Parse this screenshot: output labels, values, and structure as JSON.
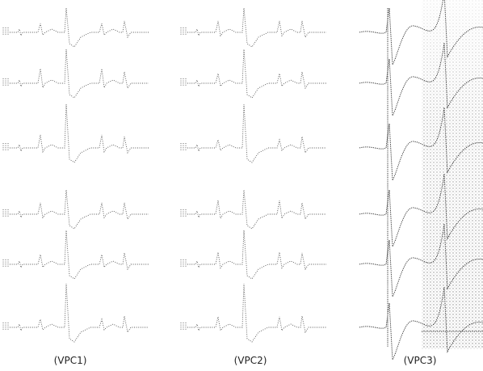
{
  "panels": [
    {
      "label": "(VPC1)"
    },
    {
      "label": "(VPC2)"
    },
    {
      "label": "(VPC3)"
    }
  ]
}
